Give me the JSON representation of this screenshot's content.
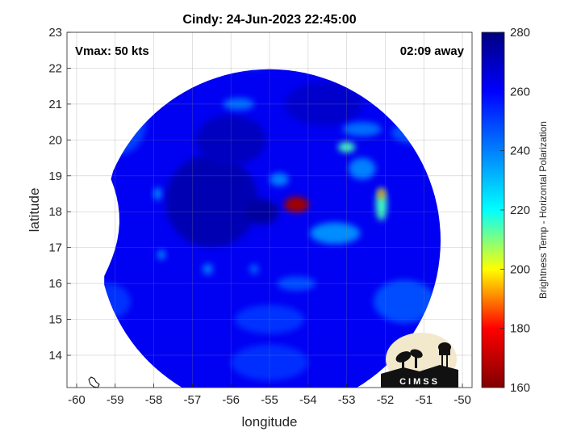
{
  "chart_data": {
    "type": "heatmap",
    "title": "Cindy: 24-Jun-2023 22:45:00",
    "annotations": {
      "vmax": "Vmax: 50 kts",
      "time_away": "02:09 away"
    },
    "xlabel": "longitude",
    "ylabel": "latitude",
    "xlim": [
      -60.25,
      -49.75
    ],
    "ylim": [
      13.1,
      23
    ],
    "x_ticks": [
      -60,
      -59,
      -58,
      -57,
      -56,
      -55,
      -54,
      -53,
      -52,
      -51,
      -50
    ],
    "y_ticks": [
      14,
      15,
      16,
      17,
      18,
      19,
      20,
      21,
      22,
      23
    ],
    "grid": true,
    "colorbar": {
      "label": "Brightness Temp - Horizontal Polarization",
      "range": [
        160,
        280
      ],
      "ticks": [
        160,
        180,
        200,
        220,
        240,
        260,
        280
      ],
      "colormap": [
        "#800000",
        "#ff0000",
        "#ffff00",
        "#00ffff",
        "#0080ff",
        "#0000ff",
        "#000080"
      ]
    },
    "swath": {
      "background_temp": 262,
      "features": [
        {
          "lon": -54.3,
          "lat": 18.2,
          "temp": 165,
          "rlon": 0.32,
          "rlat": 0.22
        },
        {
          "lon": -54.75,
          "lat": 18.9,
          "temp": 240,
          "rlon": 0.25,
          "rlat": 0.18
        },
        {
          "lon": -52.1,
          "lat": 18.2,
          "temp": 215,
          "rlon": 0.14,
          "rlat": 0.45
        },
        {
          "lon": -52.1,
          "lat": 18.5,
          "temp": 190,
          "rlon": 0.09,
          "rlat": 0.14
        },
        {
          "lon": -53.0,
          "lat": 19.8,
          "temp": 215,
          "rlon": 0.22,
          "rlat": 0.14
        },
        {
          "lon": -52.6,
          "lat": 19.2,
          "temp": 240,
          "rlon": 0.35,
          "rlat": 0.3
        },
        {
          "lon": -53.3,
          "lat": 17.4,
          "temp": 238,
          "rlon": 0.65,
          "rlat": 0.3
        },
        {
          "lon": -52.6,
          "lat": 20.3,
          "temp": 243,
          "rlon": 0.5,
          "rlat": 0.2
        },
        {
          "lon": -51.2,
          "lat": 20.2,
          "temp": 248,
          "rlon": 0.65,
          "rlat": 0.3
        },
        {
          "lon": -55.8,
          "lat": 21.0,
          "temp": 243,
          "rlon": 0.4,
          "rlat": 0.17
        },
        {
          "lon": -55.5,
          "lat": 22.2,
          "temp": 250,
          "rlon": 0.5,
          "rlat": 0.22
        },
        {
          "lon": -57.2,
          "lat": 22.0,
          "temp": 250,
          "rlon": 0.25,
          "rlat": 0.22
        },
        {
          "lon": -58.9,
          "lat": 20.5,
          "temp": 250,
          "rlon": 0.7,
          "rlat": 0.9
        },
        {
          "lon": -57.9,
          "lat": 18.5,
          "temp": 238,
          "rlon": 0.1,
          "rlat": 0.18
        },
        {
          "lon": -57.8,
          "lat": 16.8,
          "temp": 238,
          "rlon": 0.1,
          "rlat": 0.14
        },
        {
          "lon": -56.6,
          "lat": 16.4,
          "temp": 240,
          "rlon": 0.13,
          "rlat": 0.15
        },
        {
          "lon": -55.4,
          "lat": 16.4,
          "temp": 245,
          "rlon": 0.12,
          "rlat": 0.14
        },
        {
          "lon": -54.3,
          "lat": 16.0,
          "temp": 248,
          "rlon": 0.5,
          "rlat": 0.2
        },
        {
          "lon": -55.0,
          "lat": 15.0,
          "temp": 252,
          "rlon": 0.9,
          "rlat": 0.4
        },
        {
          "lon": -55.0,
          "lat": 13.8,
          "temp": 253,
          "rlon": 1.0,
          "rlat": 0.5
        },
        {
          "lon": -59.2,
          "lat": 15.5,
          "temp": 252,
          "rlon": 0.6,
          "rlat": 0.5
        },
        {
          "lon": -51.5,
          "lat": 15.5,
          "temp": 248,
          "rlon": 0.8,
          "rlat": 0.6
        },
        {
          "lon": -56.5,
          "lat": 18.3,
          "temp": 272,
          "rlon": 1.2,
          "rlat": 1.3
        },
        {
          "lon": -55.2,
          "lat": 18.0,
          "temp": 275,
          "rlon": 0.45,
          "rlat": 0.35
        },
        {
          "lon": -53.6,
          "lat": 21.0,
          "temp": 268,
          "rlon": 1.0,
          "rlat": 0.6
        },
        {
          "lon": -56.0,
          "lat": 20.0,
          "temp": 270,
          "rlon": 0.9,
          "rlat": 0.7
        }
      ]
    }
  },
  "logo": {
    "text": "CIMSS"
  }
}
